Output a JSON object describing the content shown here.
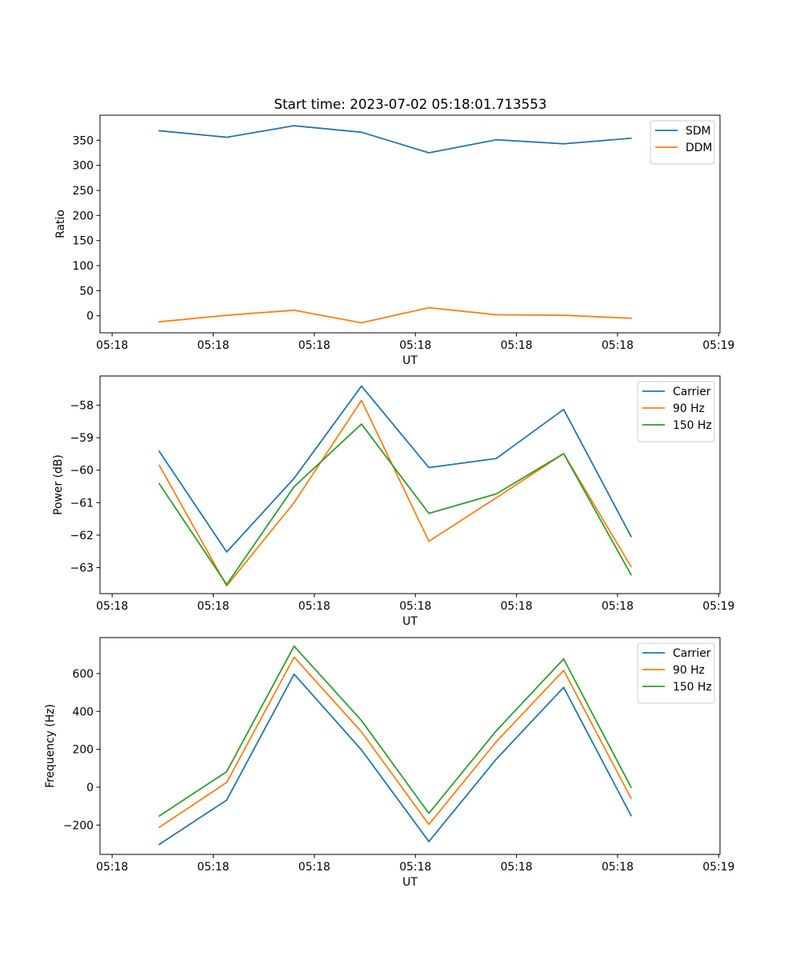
{
  "figure": {
    "title": "Start time: 2023-07-02 05:18:01.713553"
  },
  "colors": {
    "C0": "#1f77b4",
    "C1": "#ff7f0e",
    "C2": "#2ca02c",
    "axes": "#000000",
    "legend_border": "#cccccc"
  },
  "chart_data": [
    {
      "type": "line",
      "title": "Start time: 2023-07-02 05:18:01.713553",
      "xlabel": "UT",
      "ylabel": "Ratio",
      "x": [
        1,
        2,
        3,
        4,
        5,
        6,
        7,
        8
      ],
      "xlim": [
        0.12,
        9.32
      ],
      "xticks": [
        0.3,
        1.8,
        3.3,
        4.8,
        6.3,
        7.8,
        9.3
      ],
      "xtick_labels": [
        "05:18",
        "05:18",
        "05:18",
        "05:18",
        "05:18",
        "05:18",
        "05:19"
      ],
      "ylim": [
        -34,
        400
      ],
      "yticks": [
        0,
        50,
        100,
        150,
        200,
        250,
        300,
        350
      ],
      "ytick_labels": [
        "0",
        "50",
        "100",
        "150",
        "200",
        "250",
        "300",
        "350"
      ],
      "legend": "top-right",
      "series": [
        {
          "name": "SDM",
          "color": "#1f77b4",
          "values": [
            369,
            356,
            379,
            366,
            325,
            351,
            343,
            354
          ]
        },
        {
          "name": "DDM",
          "color": "#ff7f0e",
          "values": [
            -12,
            1,
            11,
            -14,
            16,
            2,
            1,
            -5
          ]
        }
      ]
    },
    {
      "type": "line",
      "xlabel": "UT",
      "ylabel": "Power (dB)",
      "x": [
        1,
        2,
        3,
        4,
        5,
        6,
        7,
        8
      ],
      "xlim": [
        0.12,
        9.32
      ],
      "xticks": [
        0.3,
        1.8,
        3.3,
        4.8,
        6.3,
        7.8,
        9.3
      ],
      "xtick_labels": [
        "05:18",
        "05:18",
        "05:18",
        "05:18",
        "05:18",
        "05:18",
        "05:19"
      ],
      "ylim": [
        -63.8,
        -57.1
      ],
      "yticks": [
        -63,
        -62,
        -61,
        -60,
        -59,
        -58
      ],
      "ytick_labels": [
        "−63",
        "−62",
        "−61",
        "−60",
        "−59",
        "−58"
      ],
      "legend": "top-right",
      "series": [
        {
          "name": "Carrier",
          "color": "#1f77b4",
          "values": [
            -59.42,
            -62.52,
            -60.25,
            -57.41,
            -59.92,
            -59.64,
            -58.13,
            -62.04
          ]
        },
        {
          "name": "90 Hz",
          "color": "#ff7f0e",
          "values": [
            -59.85,
            -63.56,
            -61.0,
            -57.85,
            -62.19,
            -60.85,
            -59.49,
            -62.97
          ]
        },
        {
          "name": "150 Hz",
          "color": "#2ca02c",
          "values": [
            -60.42,
            -63.52,
            -60.51,
            -58.58,
            -61.33,
            -60.73,
            -59.49,
            -63.22
          ]
        }
      ]
    },
    {
      "type": "line",
      "xlabel": "UT",
      "ylabel": "Frequency (Hz)",
      "x": [
        1,
        2,
        3,
        4,
        5,
        6,
        7,
        8
      ],
      "xlim": [
        0.12,
        9.32
      ],
      "xticks": [
        0.3,
        1.8,
        3.3,
        4.8,
        6.3,
        7.8,
        9.3
      ],
      "xtick_labels": [
        "05:18",
        "05:18",
        "05:18",
        "05:18",
        "05:18",
        "05:18",
        "05:19"
      ],
      "ylim": [
        -355,
        790
      ],
      "yticks": [
        -200,
        0,
        200,
        400,
        600
      ],
      "ytick_labels": [
        "−200",
        "0",
        "200",
        "400",
        "600"
      ],
      "legend": "top-right",
      "series": [
        {
          "name": "Carrier",
          "color": "#1f77b4",
          "values": [
            -302,
            -68,
            597,
            197,
            -287,
            148,
            527,
            -150
          ]
        },
        {
          "name": "90 Hz",
          "color": "#ff7f0e",
          "values": [
            -212,
            25,
            687,
            292,
            -197,
            240,
            617,
            -58
          ]
        },
        {
          "name": "150 Hz",
          "color": "#2ca02c",
          "values": [
            -152,
            82,
            745,
            352,
            -138,
            298,
            677,
            0
          ]
        }
      ]
    }
  ]
}
